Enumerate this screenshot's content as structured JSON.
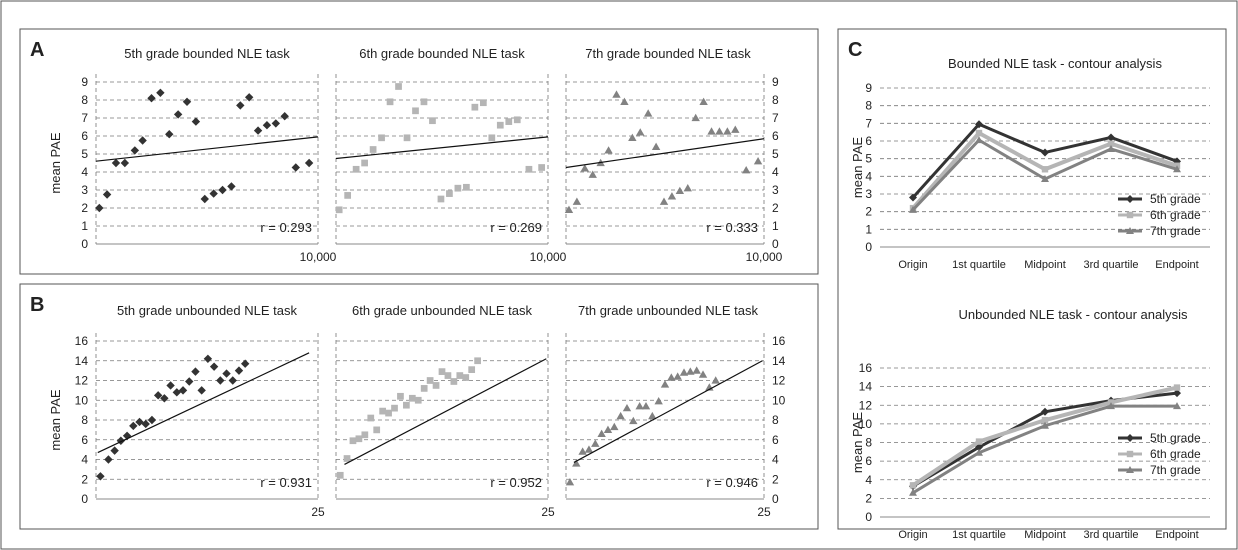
{
  "panel_labels": [
    "A",
    "B",
    "C"
  ],
  "colors": {
    "5th grade": "#333333",
    "6th grade": "#b5b5b5",
    "7th grade": "#828282"
  },
  "chart_data": [
    {
      "id": "a5",
      "type": "scatter",
      "title": "5th grade bounded NLE task",
      "grade": "5th grade",
      "ylabel": "mean PAE",
      "ylim": [
        0,
        9
      ],
      "yticks": [
        0,
        1,
        2,
        3,
        4,
        5,
        6,
        7,
        8,
        9
      ],
      "xlim": [
        0,
        10000
      ],
      "xtick_label": "10,000",
      "r_label": "r = 0.293",
      "trend": [
        [
          0,
          4.6
        ],
        [
          10000,
          5.95
        ]
      ],
      "points": [
        [
          150,
          2.0
        ],
        [
          500,
          2.75
        ],
        [
          900,
          4.5
        ],
        [
          1300,
          4.5
        ],
        [
          1750,
          5.2
        ],
        [
          2100,
          5.75
        ],
        [
          2500,
          8.1
        ],
        [
          2900,
          8.4
        ],
        [
          3300,
          6.1
        ],
        [
          3700,
          7.2
        ],
        [
          4100,
          7.9
        ],
        [
          4500,
          6.8
        ],
        [
          4900,
          2.5
        ],
        [
          5300,
          2.8
        ],
        [
          5700,
          3.0
        ],
        [
          6100,
          3.2
        ],
        [
          6500,
          7.7
        ],
        [
          6900,
          8.15
        ],
        [
          7300,
          6.3
        ],
        [
          7700,
          6.6
        ],
        [
          8100,
          6.7
        ],
        [
          8500,
          7.1
        ],
        [
          9000,
          4.25
        ],
        [
          9600,
          4.5
        ]
      ]
    },
    {
      "id": "a6",
      "type": "scatter",
      "title": "6th grade bounded NLE task",
      "grade": "6th grade",
      "ylim": [
        0,
        9
      ],
      "xlim": [
        0,
        10000
      ],
      "xtick_label": "10,000",
      "r_label": "r = 0.269",
      "trend": [
        [
          0,
          4.75
        ],
        [
          10000,
          5.95
        ]
      ],
      "points": [
        [
          150,
          1.9
        ],
        [
          550,
          2.7
        ],
        [
          950,
          4.15
        ],
        [
          1350,
          4.5
        ],
        [
          1750,
          5.25
        ],
        [
          2150,
          5.9
        ],
        [
          2550,
          7.9
        ],
        [
          2950,
          8.75
        ],
        [
          3350,
          5.9
        ],
        [
          3750,
          7.4
        ],
        [
          4150,
          7.9
        ],
        [
          4550,
          6.85
        ],
        [
          4950,
          2.5
        ],
        [
          5350,
          2.8
        ],
        [
          5750,
          3.1
        ],
        [
          6150,
          3.15
        ],
        [
          6550,
          7.6
        ],
        [
          6950,
          7.85
        ],
        [
          7350,
          5.9
        ],
        [
          7750,
          6.6
        ],
        [
          8150,
          6.8
        ],
        [
          8550,
          6.9
        ],
        [
          9100,
          4.15
        ],
        [
          9700,
          4.25
        ]
      ]
    },
    {
      "id": "a7",
      "type": "scatter",
      "title": "7th grade bounded NLE task",
      "grade": "7th grade",
      "ylim": [
        0,
        9
      ],
      "yticks": [
        0,
        1,
        2,
        3,
        4,
        5,
        6,
        7,
        8,
        9
      ],
      "xlim": [
        0,
        10000
      ],
      "xtick_label": "10,000",
      "r_label": "r = 0.333",
      "trend": [
        [
          0,
          4.25
        ],
        [
          10000,
          5.85
        ]
      ],
      "points": [
        [
          150,
          1.9
        ],
        [
          550,
          2.35
        ],
        [
          950,
          4.2
        ],
        [
          1350,
          3.85
        ],
        [
          1750,
          4.5
        ],
        [
          2150,
          5.2
        ],
        [
          2550,
          8.3
        ],
        [
          2950,
          7.9
        ],
        [
          3350,
          5.9
        ],
        [
          3750,
          6.2
        ],
        [
          4150,
          7.25
        ],
        [
          4550,
          5.4
        ],
        [
          4950,
          2.35
        ],
        [
          5350,
          2.65
        ],
        [
          5750,
          2.95
        ],
        [
          6150,
          3.1
        ],
        [
          6550,
          7.0
        ],
        [
          6950,
          7.9
        ],
        [
          7350,
          6.25
        ],
        [
          7750,
          6.25
        ],
        [
          8150,
          6.25
        ],
        [
          8550,
          6.35
        ],
        [
          9100,
          4.1
        ],
        [
          9700,
          4.6
        ]
      ]
    },
    {
      "id": "b5",
      "type": "scatter",
      "title": "5th grade unbounded NLE task",
      "grade": "5th grade",
      "ylabel": "mean PAE",
      "ylim": [
        0,
        16
      ],
      "yticks": [
        0,
        2,
        4,
        6,
        8,
        10,
        12,
        14,
        16
      ],
      "xlim": [
        0,
        25
      ],
      "xtick_label": "25",
      "r_label": "r = 0.931",
      "trend": [
        [
          0.2,
          4.7
        ],
        [
          24.0,
          14.8
        ]
      ],
      "points": [
        [
          0.5,
          2.3
        ],
        [
          1.4,
          4.0
        ],
        [
          2.1,
          4.9
        ],
        [
          2.8,
          5.9
        ],
        [
          3.5,
          6.4
        ],
        [
          4.2,
          7.4
        ],
        [
          4.9,
          7.8
        ],
        [
          5.6,
          7.6
        ],
        [
          6.3,
          8.0
        ],
        [
          7.0,
          10.5
        ],
        [
          7.7,
          10.2
        ],
        [
          8.4,
          11.5
        ],
        [
          9.1,
          10.8
        ],
        [
          9.8,
          11.0
        ],
        [
          10.5,
          11.9
        ],
        [
          11.2,
          12.9
        ],
        [
          11.9,
          11.0
        ],
        [
          12.6,
          14.2
        ],
        [
          13.3,
          13.4
        ],
        [
          14.0,
          12.0
        ],
        [
          14.7,
          12.7
        ],
        [
          15.4,
          12.0
        ],
        [
          16.1,
          13.0
        ],
        [
          16.8,
          13.7
        ]
      ]
    },
    {
      "id": "b6",
      "type": "scatter",
      "title": "6th grade unbounded NLE task",
      "grade": "6th grade",
      "ylim": [
        0,
        16
      ],
      "xlim": [
        0,
        25
      ],
      "xtick_label": "25",
      "r_label": "r = 0.952",
      "trend": [
        [
          1.0,
          3.5
        ],
        [
          24.8,
          14.2
        ]
      ],
      "points": [
        [
          0.5,
          2.4
        ],
        [
          1.3,
          4.1
        ],
        [
          2.0,
          5.9
        ],
        [
          2.7,
          6.1
        ],
        [
          3.4,
          6.5
        ],
        [
          4.1,
          8.2
        ],
        [
          4.8,
          7.0
        ],
        [
          5.5,
          8.9
        ],
        [
          6.2,
          8.7
        ],
        [
          6.9,
          9.2
        ],
        [
          7.6,
          10.4
        ],
        [
          8.3,
          9.5
        ],
        [
          9.0,
          10.2
        ],
        [
          9.7,
          10.0
        ],
        [
          10.4,
          11.2
        ],
        [
          11.1,
          12.0
        ],
        [
          11.8,
          11.5
        ],
        [
          12.5,
          12.9
        ],
        [
          13.2,
          12.5
        ],
        [
          13.9,
          11.9
        ],
        [
          14.6,
          12.5
        ],
        [
          15.3,
          12.3
        ],
        [
          16.0,
          13.1
        ],
        [
          16.7,
          14.0
        ]
      ]
    },
    {
      "id": "b7",
      "type": "scatter",
      "title": "7th grade unbounded NLE task",
      "grade": "7th grade",
      "ylim": [
        0,
        16
      ],
      "yticks": [
        0,
        2,
        4,
        6,
        8,
        10,
        12,
        14,
        16
      ],
      "xlim": [
        0,
        25
      ],
      "xtick_label": "25",
      "r_label": "r = 0.946",
      "trend": [
        [
          1.0,
          3.7
        ],
        [
          24.8,
          14.0
        ]
      ],
      "points": [
        [
          0.5,
          1.7
        ],
        [
          1.3,
          3.6
        ],
        [
          2.1,
          4.8
        ],
        [
          2.9,
          5.0
        ],
        [
          3.7,
          5.6
        ],
        [
          4.5,
          6.6
        ],
        [
          5.3,
          7.0
        ],
        [
          6.1,
          7.3
        ],
        [
          6.9,
          8.4
        ],
        [
          7.7,
          9.2
        ],
        [
          8.5,
          7.9
        ],
        [
          9.3,
          9.4
        ],
        [
          10.1,
          9.4
        ],
        [
          10.9,
          8.4
        ],
        [
          11.7,
          9.9
        ],
        [
          12.5,
          11.6
        ],
        [
          13.3,
          12.3
        ],
        [
          14.1,
          12.4
        ],
        [
          14.9,
          12.8
        ],
        [
          15.7,
          12.9
        ],
        [
          16.5,
          13.0
        ],
        [
          17.3,
          12.6
        ],
        [
          18.1,
          11.3
        ],
        [
          18.9,
          12.0
        ]
      ]
    },
    {
      "id": "c1",
      "type": "line",
      "title": "Bounded NLE task - contour analysis",
      "ylabel": "mean PAE",
      "ylim": [
        0,
        9
      ],
      "yticks": [
        0,
        1,
        2,
        3,
        4,
        5,
        6,
        7,
        8,
        9
      ],
      "categories": [
        "Origin",
        "1st quartile",
        "Midpoint",
        "3rd quartile",
        "Endpoint"
      ],
      "series": [
        {
          "name": "5th grade",
          "values": [
            2.8,
            6.95,
            5.35,
            6.2,
            4.85
          ]
        },
        {
          "name": "6th grade",
          "values": [
            2.2,
            6.45,
            4.4,
            5.85,
            4.6
          ]
        },
        {
          "name": "7th grade",
          "values": [
            2.1,
            6.05,
            3.85,
            5.55,
            4.4
          ]
        }
      ]
    },
    {
      "id": "c2",
      "type": "line",
      "title": "Unbounded NLE task - contour analysis",
      "ylabel": "mean PAE",
      "ylim": [
        0,
        16
      ],
      "yticks": [
        0,
        2,
        4,
        6,
        8,
        10,
        12,
        14,
        16
      ],
      "categories": [
        "Origin",
        "1st quartile",
        "Midpoint",
        "3rd quartile",
        "Endpoint"
      ],
      "series": [
        {
          "name": "5th grade",
          "values": [
            3.3,
            7.5,
            11.3,
            12.5,
            13.3
          ]
        },
        {
          "name": "6th grade",
          "values": [
            3.4,
            8.1,
            10.4,
            12.3,
            13.9
          ]
        },
        {
          "name": "7th grade",
          "values": [
            2.6,
            6.9,
            9.8,
            11.9,
            11.9
          ]
        }
      ]
    }
  ]
}
